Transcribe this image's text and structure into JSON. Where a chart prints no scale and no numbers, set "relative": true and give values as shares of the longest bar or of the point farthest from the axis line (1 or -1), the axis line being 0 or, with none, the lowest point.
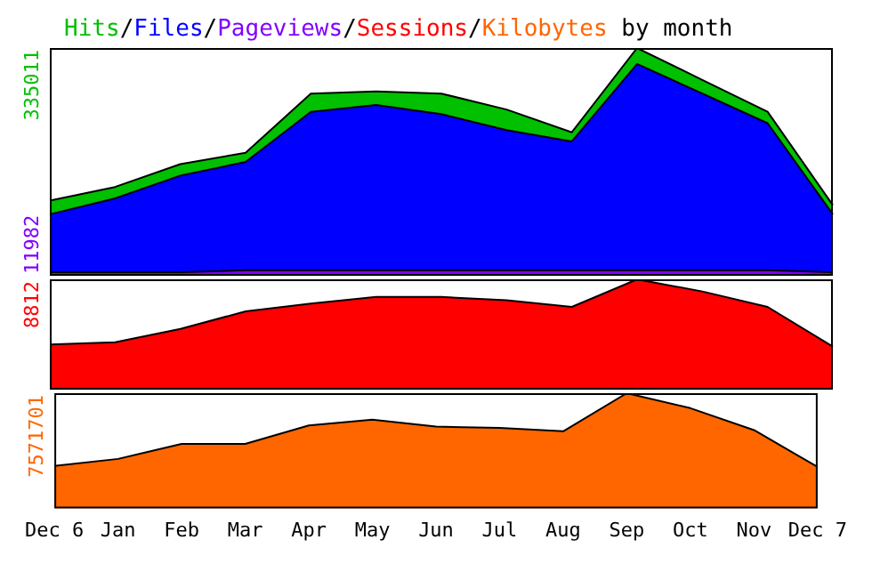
{
  "chart_data": [
    {
      "type": "area",
      "title": "Hits/Files/Pageviews/Sessions/Kilobytes by month",
      "relative": true,
      "tick_labels": false,
      "grid": false,
      "categories": [
        null,
        null,
        null,
        null,
        null,
        null,
        null,
        null,
        null,
        null,
        null,
        null,
        null
      ],
      "annotations": [
        "335011",
        "11982"
      ],
      "series": [
        {
          "color": "#00c000",
          "values": [
            0.33,
            0.39,
            0.49,
            0.54,
            0.8,
            0.81,
            0.8,
            0.73,
            0.63,
            1,
            0.86,
            0.72,
            0.31
          ]
        },
        {
          "color": "#0000ff",
          "values": [
            0.27,
            0.34,
            0.44,
            0.5,
            0.72,
            0.75,
            0.71,
            0.64,
            0.59,
            0.93,
            0.8,
            0.67,
            0.27
          ]
        },
        {
          "color": "#8000ff",
          "values": [
            0.016,
            0.016,
            0.016,
            0.024,
            0.024,
            0.024,
            0.024,
            0.024,
            0.024,
            0.024,
            0.024,
            0.024,
            0.016
          ]
        }
      ]
    },
    {
      "type": "area",
      "relative": true,
      "tick_labels": false,
      "grid": false,
      "categories": [
        null,
        null,
        null,
        null,
        null,
        null,
        null,
        null,
        null,
        null,
        null,
        null,
        null
      ],
      "annotations": [
        "8812"
      ],
      "series": [
        {
          "color": "#ff0000",
          "values": [
            0.41,
            0.43,
            0.55,
            0.71,
            0.78,
            0.84,
            0.84,
            0.81,
            0.75,
            1,
            0.89,
            0.75,
            0.39
          ]
        }
      ]
    },
    {
      "type": "area",
      "relative": true,
      "tick_labels": "x",
      "grid": false,
      "categories": [
        "Dec 6",
        "Jan",
        "Feb",
        "Mar",
        "Apr",
        "May",
        "Jun",
        "Jul",
        "Aug",
        "Sep",
        "Oct",
        "Nov",
        "Dec 7"
      ],
      "annotations": [
        "7571701"
      ],
      "series": [
        {
          "color": "#ff6600",
          "values": [
            0.37,
            0.43,
            0.56,
            0.56,
            0.72,
            0.77,
            0.71,
            0.7,
            0.67,
            1,
            0.87,
            0.68,
            0.36
          ]
        }
      ]
    }
  ]
}
